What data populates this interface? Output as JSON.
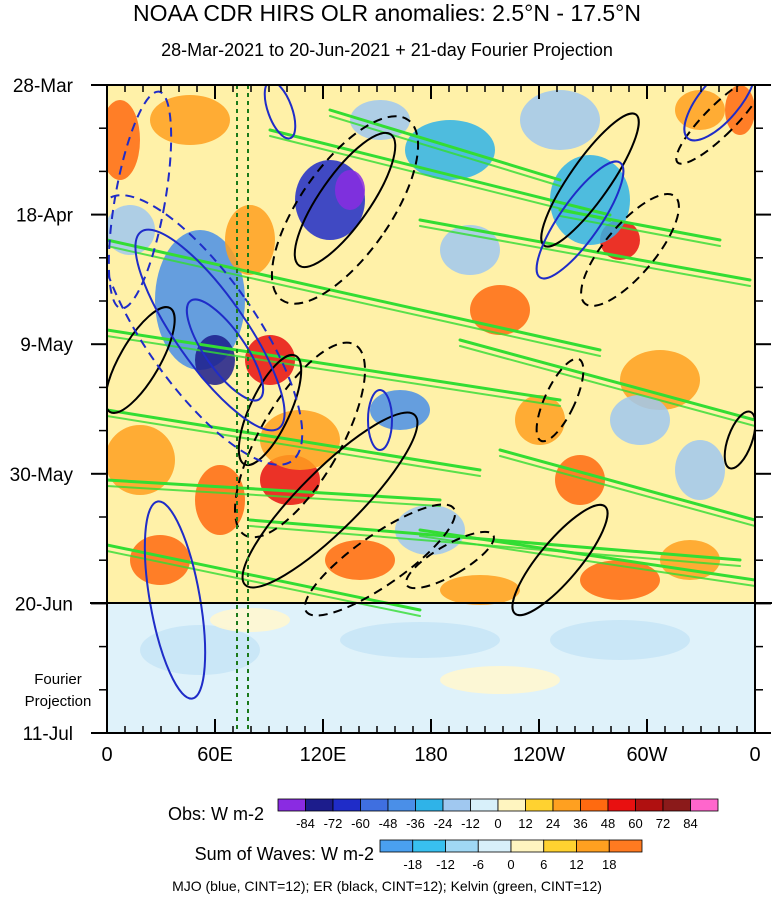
{
  "header": {
    "title": "NOAA CDR HIRS OLR anomalies: 2.5°N - 17.5°N",
    "subtitle": "28-Mar-2021 to 20-Jun-2021 + 21-day Fourier Projection"
  },
  "chart_data": {
    "type": "heatmap",
    "title": "NOAA CDR HIRS OLR anomalies: 2.5°N - 17.5°N",
    "subtitle": "28-Mar-2021 to 20-Jun-2021 + 21-day Fourier Projection",
    "x_ticks": [
      "0",
      "60E",
      "120E",
      "180",
      "120W",
      "60W",
      "0"
    ],
    "y_ticks": [
      "28-Mar",
      "18-Apr",
      "9-May",
      "30-May",
      "20-Jun",
      "11-Jul"
    ],
    "projection_label": [
      "Fourier",
      "Projection"
    ],
    "obs_colorbar": {
      "title": "Obs: W m-2",
      "levels": [
        "-84",
        "-72",
        "-60",
        "-48",
        "-36",
        "-24",
        "-12",
        "0",
        "12",
        "24",
        "36",
        "48",
        "60",
        "72",
        "84"
      ],
      "colors": [
        "#8a2be2",
        "#1c1c8c",
        "#1f2cc8",
        "#3f6fe0",
        "#4a8fe8",
        "#2fb3e8",
        "#a0c8f0",
        "#d8f0fa",
        "#fff5c0",
        "#ffd230",
        "#ffa020",
        "#ff6a10",
        "#e81010",
        "#b01010",
        "#8b1a1a",
        "#ff66cc"
      ]
    },
    "waves_colorbar": {
      "title": "Sum of Waves: W m-2",
      "levels": [
        "-18",
        "-12",
        "-6",
        "0",
        "6",
        "12",
        "18"
      ],
      "colors": [
        "#4aa0f0",
        "#38c0f0",
        "#a0d8f5",
        "#d8f0fa",
        "#fff5c0",
        "#ffd230",
        "#ffa020",
        "#ff7a20"
      ]
    },
    "footer": "MJO (blue, CINT=12); ER (black, CINT=12); Kelvin (green, CINT=12)",
    "wave_colors": {
      "mjo": "#1f2cc8",
      "er": "#000000",
      "kelvin": "#33dd33"
    }
  }
}
